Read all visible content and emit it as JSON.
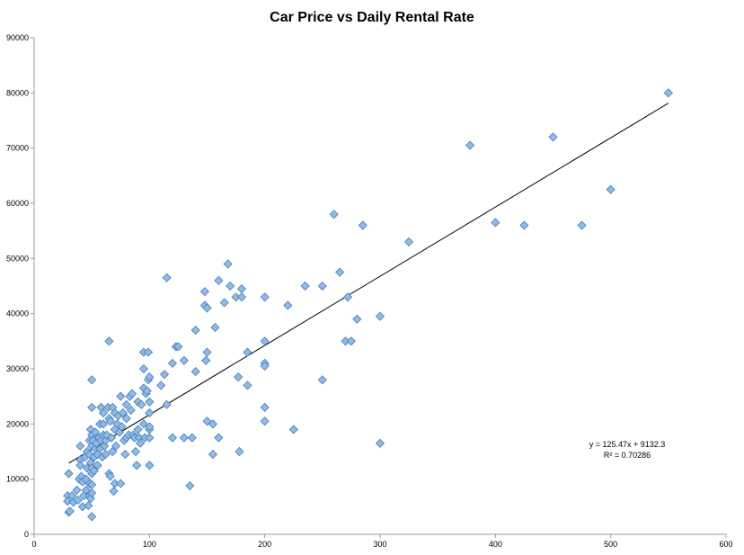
{
  "colors": {
    "point_fill": "#94b9e2",
    "point_stroke": "#3f7fbf",
    "trendline": "#000000"
  },
  "chart_data": {
    "type": "scatter",
    "title": "Car Price vs Daily Rental Rate",
    "xlabel": "",
    "ylabel": "",
    "xlim": [
      0,
      600
    ],
    "ylim": [
      0,
      90000
    ],
    "x_ticks": [
      "0",
      "100",
      "200",
      "300",
      "400",
      "500",
      "600"
    ],
    "y_ticks": [
      "0",
      "10000",
      "20000",
      "30000",
      "40000",
      "50000",
      "60000",
      "70000",
      "80000",
      "90000"
    ],
    "grid": false,
    "marker": "diamond",
    "trendline": {
      "slope": 125.47,
      "intercept": 9132.3,
      "x_range": [
        30,
        550
      ]
    },
    "annotations": {
      "equation": "y = 125.47x + 9132.3",
      "r_squared": "R² = 0.70286"
    },
    "points": [
      [
        30,
        11000
      ],
      [
        29,
        7000
      ],
      [
        29,
        6000
      ],
      [
        30,
        4000
      ],
      [
        31,
        4200
      ],
      [
        33,
        7000
      ],
      [
        34,
        5800
      ],
      [
        37,
        8000
      ],
      [
        38,
        6200
      ],
      [
        39,
        10000
      ],
      [
        40,
        13500
      ],
      [
        40,
        12500
      ],
      [
        40,
        16000
      ],
      [
        41,
        10500
      ],
      [
        42,
        9500
      ],
      [
        42,
        5000
      ],
      [
        43,
        7000
      ],
      [
        44,
        14000
      ],
      [
        45,
        10000
      ],
      [
        45,
        8000
      ],
      [
        46,
        12000
      ],
      [
        46,
        15000
      ],
      [
        47,
        5200
      ],
      [
        48,
        9200
      ],
      [
        48,
        17000
      ],
      [
        48,
        14500
      ],
      [
        48,
        7000
      ],
      [
        49,
        19000
      ],
      [
        49,
        13000
      ],
      [
        49,
        6500
      ],
      [
        50,
        18000
      ],
      [
        50,
        16000
      ],
      [
        50,
        11000
      ],
      [
        50,
        12000
      ],
      [
        50,
        9000
      ],
      [
        50,
        7500
      ],
      [
        50,
        23000
      ],
      [
        50,
        28000
      ],
      [
        50,
        3200
      ],
      [
        51,
        17000
      ],
      [
        52,
        14000
      ],
      [
        52,
        11500
      ],
      [
        53,
        18500
      ],
      [
        53,
        15500
      ],
      [
        54,
        16500
      ],
      [
        55,
        14500
      ],
      [
        55,
        12500
      ],
      [
        56,
        17500
      ],
      [
        57,
        20000
      ],
      [
        57,
        15500
      ],
      [
        58,
        23000
      ],
      [
        58,
        17000
      ],
      [
        59,
        14000
      ],
      [
        60,
        22000
      ],
      [
        60,
        18000
      ],
      [
        60,
        20000
      ],
      [
        61,
        16000
      ],
      [
        62,
        17000
      ],
      [
        62,
        14500
      ],
      [
        63,
        18000
      ],
      [
        64,
        23000
      ],
      [
        65,
        35000
      ],
      [
        65,
        11000
      ],
      [
        65,
        21000
      ],
      [
        66,
        20500
      ],
      [
        66,
        10500
      ],
      [
        67,
        17500
      ],
      [
        68,
        23000
      ],
      [
        68,
        15000
      ],
      [
        69,
        7800
      ],
      [
        70,
        22000
      ],
      [
        70,
        19000
      ],
      [
        70,
        9200
      ],
      [
        71,
        16000
      ],
      [
        72,
        20000
      ],
      [
        73,
        21500
      ],
      [
        74,
        18500
      ],
      [
        75,
        25000
      ],
      [
        75,
        9200
      ],
      [
        76,
        19500
      ],
      [
        77,
        22000
      ],
      [
        78,
        17000
      ],
      [
        79,
        14500
      ],
      [
        80,
        21000
      ],
      [
        80,
        23500
      ],
      [
        80,
        17500
      ],
      [
        82,
        18000
      ],
      [
        83,
        25000
      ],
      [
        84,
        22500
      ],
      [
        85,
        25500
      ],
      [
        86,
        18000
      ],
      [
        87,
        17500
      ],
      [
        88,
        15000
      ],
      [
        89,
        12500
      ],
      [
        90,
        24000
      ],
      [
        90,
        19000
      ],
      [
        91,
        17500
      ],
      [
        92,
        16500
      ],
      [
        93,
        23500
      ],
      [
        95,
        33000
      ],
      [
        95,
        26500
      ],
      [
        95,
        30000
      ],
      [
        95,
        20000
      ],
      [
        96,
        17500
      ],
      [
        97,
        25500
      ],
      [
        98,
        26000
      ],
      [
        99,
        33000
      ],
      [
        99,
        28000
      ],
      [
        100,
        28500
      ],
      [
        100,
        22000
      ],
      [
        100,
        19000
      ],
      [
        100,
        17500
      ],
      [
        100,
        12500
      ],
      [
        100,
        19500
      ],
      [
        100,
        24000
      ],
      [
        110,
        27000
      ],
      [
        113,
        29000
      ],
      [
        115,
        46500
      ],
      [
        115,
        23500
      ],
      [
        120,
        31000
      ],
      [
        120,
        17500
      ],
      [
        123,
        34000
      ],
      [
        125,
        34000
      ],
      [
        130,
        31500
      ],
      [
        130,
        17500
      ],
      [
        135,
        8800
      ],
      [
        137,
        17500
      ],
      [
        140,
        37000
      ],
      [
        140,
        29500
      ],
      [
        148,
        44000
      ],
      [
        148,
        41500
      ],
      [
        149,
        31500
      ],
      [
        150,
        41000
      ],
      [
        150,
        33000
      ],
      [
        150,
        20500
      ],
      [
        155,
        20000
      ],
      [
        155,
        14500
      ],
      [
        157,
        37500
      ],
      [
        160,
        46000
      ],
      [
        160,
        17500
      ],
      [
        165,
        42000
      ],
      [
        168,
        49000
      ],
      [
        170,
        45000
      ],
      [
        175,
        43000
      ],
      [
        177,
        28500
      ],
      [
        178,
        15000
      ],
      [
        180,
        43000
      ],
      [
        180,
        44500
      ],
      [
        185,
        33000
      ],
      [
        185,
        27000
      ],
      [
        200,
        43000
      ],
      [
        200,
        35000
      ],
      [
        200,
        31000
      ],
      [
        200,
        30500
      ],
      [
        200,
        23000
      ],
      [
        200,
        20500
      ],
      [
        220,
        41500
      ],
      [
        225,
        19000
      ],
      [
        235,
        45000
      ],
      [
        250,
        45000
      ],
      [
        250,
        28000
      ],
      [
        260,
        58000
      ],
      [
        265,
        47500
      ],
      [
        270,
        35000
      ],
      [
        272,
        43000
      ],
      [
        275,
        35000
      ],
      [
        280,
        39000
      ],
      [
        285,
        56000
      ],
      [
        300,
        39500
      ],
      [
        300,
        16500
      ],
      [
        325,
        53000
      ],
      [
        378,
        70500
      ],
      [
        400,
        56500
      ],
      [
        425,
        56000
      ],
      [
        450,
        72000
      ],
      [
        475,
        56000
      ],
      [
        500,
        62500
      ],
      [
        550,
        80000
      ]
    ]
  }
}
